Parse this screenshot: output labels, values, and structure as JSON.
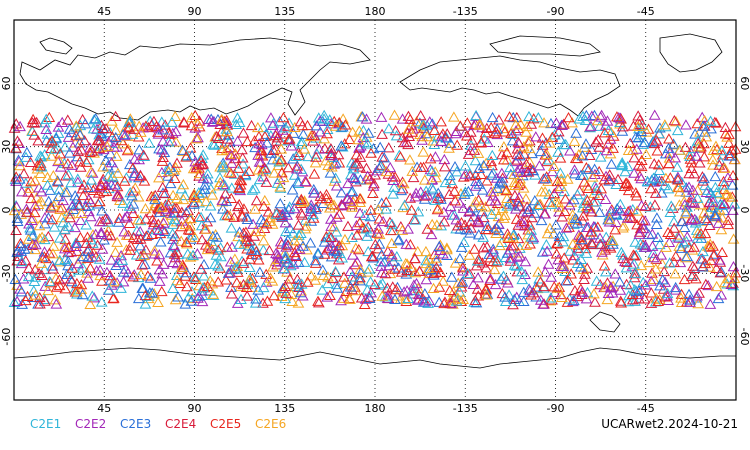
{
  "map": {
    "lon_ticks_top": [
      "45",
      "90",
      "135",
      "180",
      "-135",
      "-90",
      "-45"
    ],
    "lon_ticks_bottom": [
      "45",
      "90",
      "135",
      "180",
      "-135",
      "-90",
      "-45"
    ],
    "lat_ticks_left": [
      "60",
      "30",
      "0",
      "-30",
      "-60"
    ],
    "lat_ticks_right": [
      "60",
      "30",
      "0",
      "-30",
      "-60"
    ],
    "lon_values": [
      45,
      90,
      135,
      180,
      225,
      270,
      315
    ],
    "lat_values": [
      60,
      30,
      0,
      -30,
      -60
    ],
    "lon_range": [
      0,
      360
    ],
    "lat_range": [
      -90,
      90
    ],
    "observation_lat_band": [
      -45,
      45
    ],
    "marker_symbol": "open-triangle",
    "grid": "dotted"
  },
  "legend": {
    "items": [
      {
        "label": "C2E1",
        "color": "#2fb5d9"
      },
      {
        "label": "C2E2",
        "color": "#a227b8"
      },
      {
        "label": "C2E3",
        "color": "#2a6fd8"
      },
      {
        "label": "C2E4",
        "color": "#d81b3a"
      },
      {
        "label": "C2E5",
        "color": "#e8261e"
      },
      {
        "label": "C2E6",
        "color": "#f5a623"
      }
    ]
  },
  "stamp": "UCARwet2.2024-10-21"
}
